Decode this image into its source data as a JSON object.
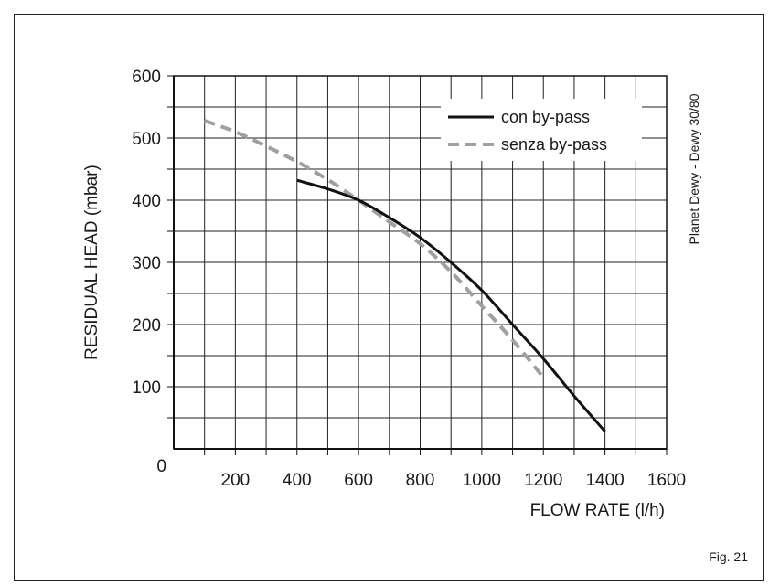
{
  "chart_data": {
    "type": "line",
    "title": "",
    "xlabel": "FLOW RATE (l/h)",
    "ylabel": "RESIDUAL HEAD (mbar)",
    "xlim": [
      0,
      1600
    ],
    "ylim": [
      0,
      600
    ],
    "x_ticks": [
      200,
      400,
      600,
      800,
      1000,
      1200,
      1400,
      1600
    ],
    "y_ticks": [
      100,
      200,
      300,
      400,
      500,
      600
    ],
    "origin_label": "0",
    "grid": true,
    "legend_position": "top-right",
    "series": [
      {
        "name": "con by-pass",
        "color": "#111111",
        "style": "solid",
        "x": [
          400,
          500,
          600,
          700,
          800,
          900,
          1000,
          1100,
          1200,
          1300,
          1400
        ],
        "y": [
          432,
          418,
          400,
          372,
          340,
          300,
          255,
          200,
          145,
          85,
          28
        ]
      },
      {
        "name": "senza by-pass",
        "color": "#a0a0a0",
        "style": "dashed",
        "x": [
          100,
          200,
          300,
          400,
          500,
          600,
          700,
          800,
          900,
          1000,
          1100,
          1200
        ],
        "y": [
          528,
          510,
          487,
          462,
          433,
          400,
          365,
          330,
          285,
          230,
          175,
          115
        ]
      }
    ]
  },
  "side_label": "Planet Dewy - Dewy 30/80",
  "figure_label": "Fig. 21"
}
